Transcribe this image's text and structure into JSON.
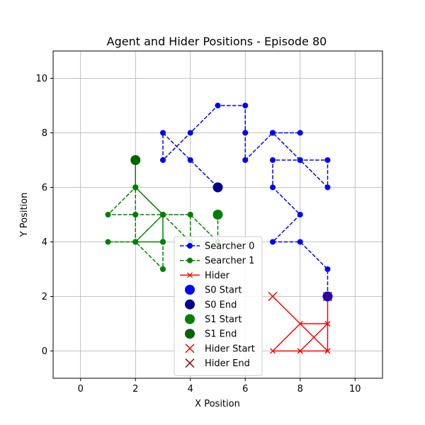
{
  "chart_data": {
    "type": "line",
    "title": "Agent and Hider Positions - Episode 80",
    "xlabel": "X Position",
    "ylabel": "Y Position",
    "xlim": [
      -1,
      11
    ],
    "ylim": [
      -1,
      11
    ],
    "xticks": [
      0,
      2,
      4,
      6,
      8,
      10
    ],
    "yticks": [
      0,
      2,
      4,
      6,
      8,
      10
    ],
    "grid": true,
    "legend_position": "bottom-center",
    "series": [
      {
        "name": "Searcher 0",
        "color": "#0000ff",
        "linestyle": "dashed",
        "marker": "circle",
        "points": [
          [
            9,
            2
          ],
          [
            9,
            3
          ],
          [
            8,
            4
          ],
          [
            7,
            4
          ],
          [
            8,
            5
          ],
          [
            7,
            6
          ],
          [
            7,
            7
          ],
          [
            8,
            7
          ],
          [
            9,
            7
          ],
          [
            9,
            6
          ],
          [
            8,
            7
          ],
          [
            7,
            8
          ],
          [
            8,
            8
          ],
          [
            7,
            8
          ],
          [
            6,
            7
          ],
          [
            6,
            8
          ],
          [
            6,
            9
          ],
          [
            5,
            9
          ],
          [
            4,
            8
          ],
          [
            3,
            7
          ],
          [
            3,
            8
          ],
          [
            4,
            7
          ],
          [
            5,
            6
          ]
        ]
      },
      {
        "name": "Searcher 1",
        "color": "#008000",
        "linestyle": "dashed",
        "marker": "circle",
        "points": [
          [
            5,
            5
          ],
          [
            5,
            4
          ],
          [
            4,
            5
          ],
          [
            3,
            5
          ],
          [
            2,
            6
          ],
          [
            2,
            7
          ],
          [
            2,
            6
          ],
          [
            1,
            5
          ],
          [
            2,
            5
          ],
          [
            3,
            5
          ],
          [
            3,
            4
          ],
          [
            2,
            4
          ],
          [
            1,
            4
          ],
          [
            2,
            4
          ],
          [
            3,
            3
          ],
          [
            3,
            4
          ],
          [
            3,
            5
          ],
          [
            2,
            4
          ],
          [
            2,
            5
          ],
          [
            2,
            6
          ],
          [
            3,
            5
          ],
          [
            4,
            5
          ],
          [
            4,
            4
          ],
          [
            3,
            5
          ],
          [
            2,
            4
          ],
          [
            3,
            4
          ],
          [
            3,
            5
          ],
          [
            2,
            6
          ],
          [
            2,
            7
          ]
        ]
      },
      {
        "name": "Hider",
        "color": "#ff0000",
        "linestyle": "solid",
        "marker": "x",
        "points": [
          [
            7,
            2
          ],
          [
            8,
            1
          ],
          [
            9,
            0
          ],
          [
            8,
            0
          ],
          [
            7,
            0
          ],
          [
            8,
            0
          ],
          [
            9,
            0
          ],
          [
            9,
            1
          ],
          [
            9,
            2
          ],
          [
            9,
            1
          ],
          [
            8,
            0
          ],
          [
            9,
            0
          ],
          [
            9,
            1
          ],
          [
            8,
            1
          ],
          [
            7,
            0
          ],
          [
            8,
            0
          ],
          [
            9,
            0
          ],
          [
            9,
            2
          ]
        ]
      }
    ],
    "markers": [
      {
        "name": "S0 Start",
        "color": "#0000ff",
        "shape": "circle",
        "x": 9,
        "y": 2
      },
      {
        "name": "S0 End",
        "color": "#00008b",
        "shape": "circle",
        "x": 5,
        "y": 6
      },
      {
        "name": "S1 Start",
        "color": "#008000",
        "shape": "circle",
        "x": 5,
        "y": 5
      },
      {
        "name": "S1 End",
        "color": "#006400",
        "shape": "circle",
        "x": 2,
        "y": 7
      },
      {
        "name": "Hider Start",
        "color": "#ff0000",
        "shape": "x",
        "x": 7,
        "y": 2
      },
      {
        "name": "Hider End",
        "color": "#8b0000",
        "shape": "x",
        "x": 9,
        "y": 2
      }
    ]
  }
}
